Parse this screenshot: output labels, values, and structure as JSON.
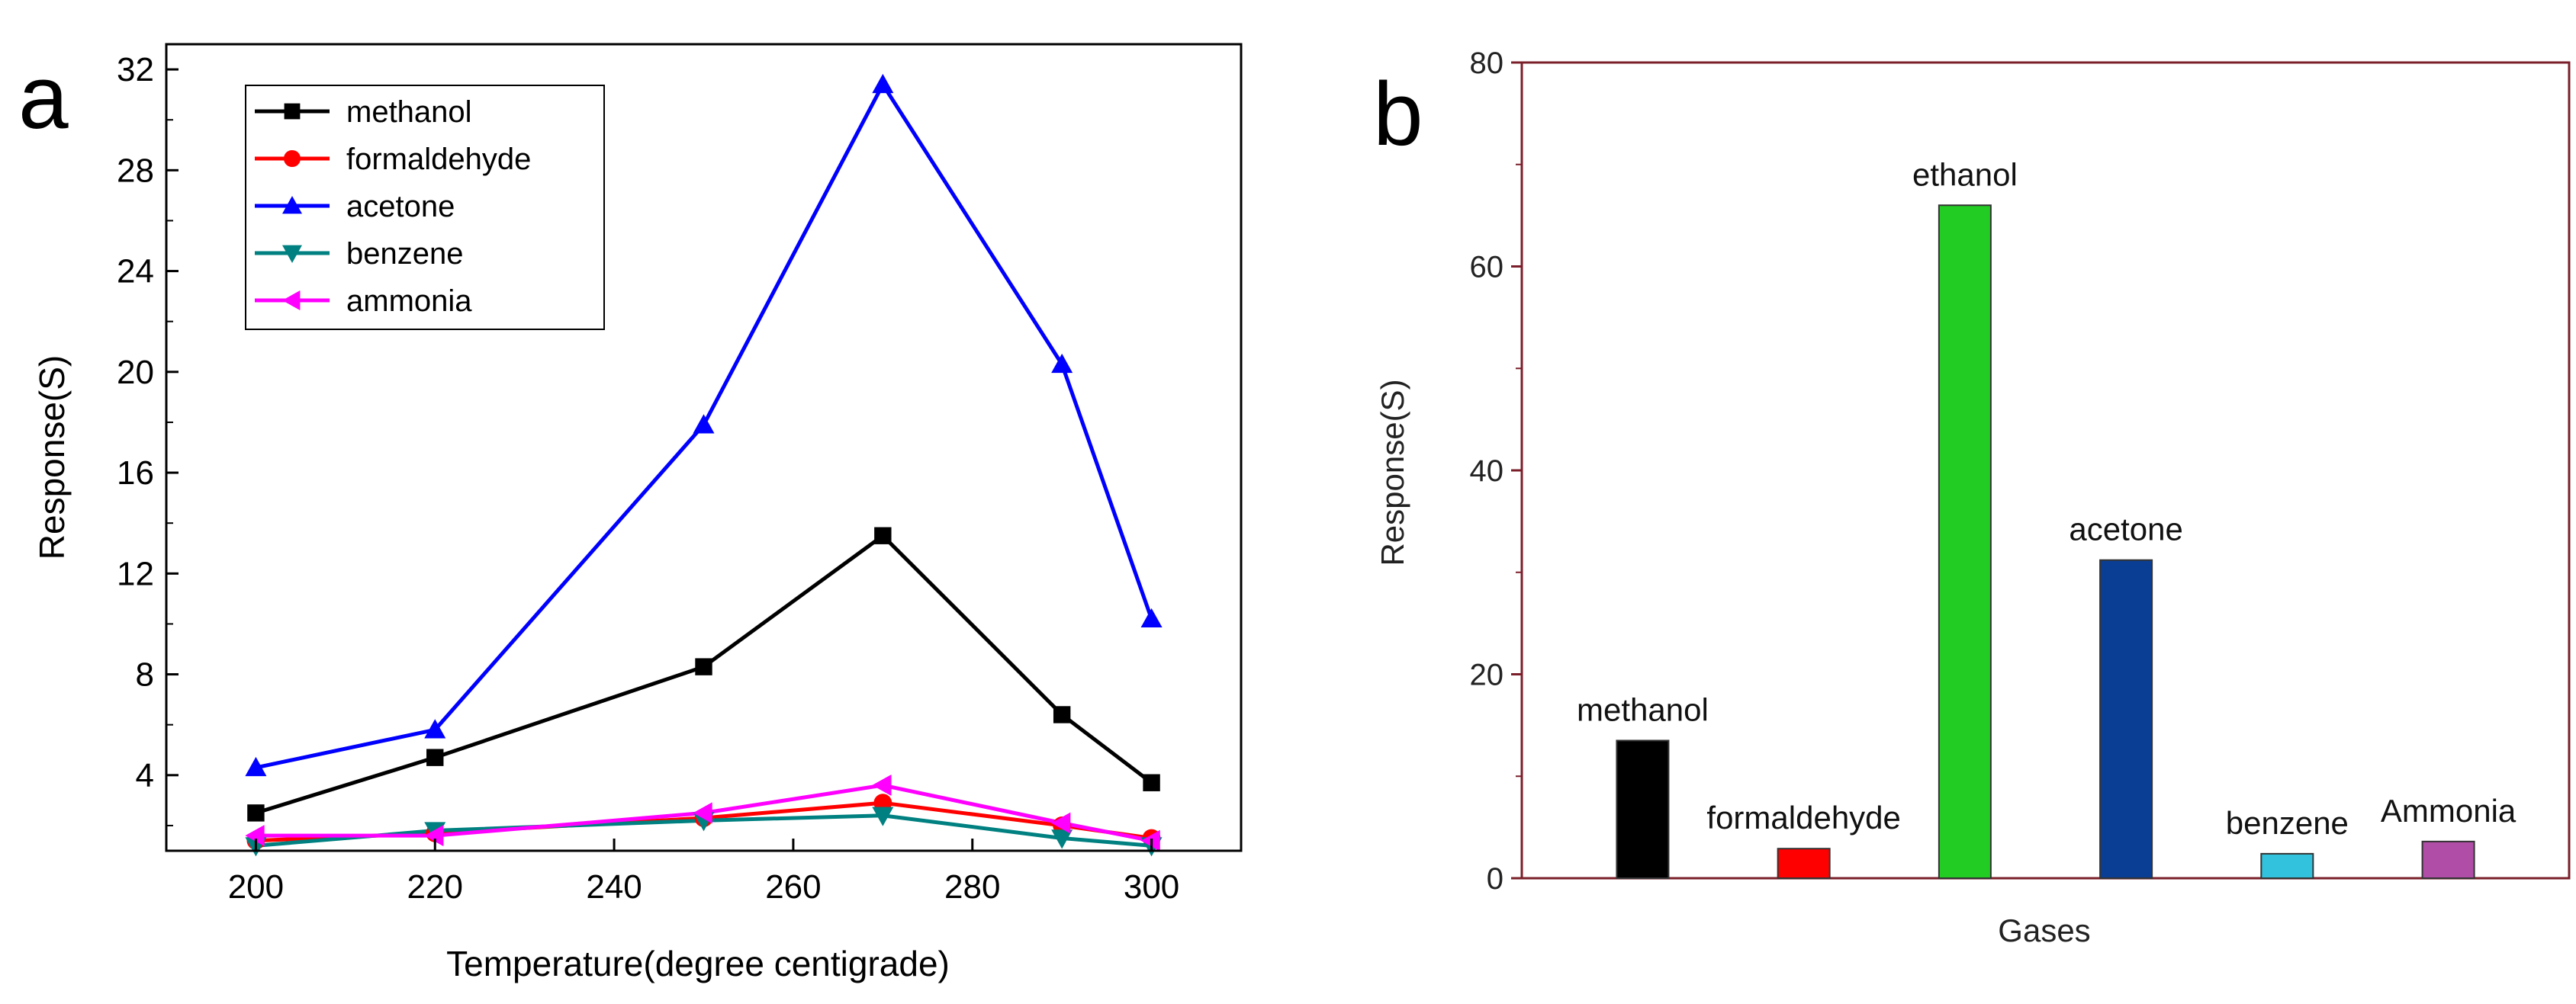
{
  "chart_data": [
    {
      "panel": "a",
      "type": "line",
      "title": "",
      "xlabel": "Temperature(degree centigrade)",
      "ylabel": "Response(S)",
      "xlim": [
        190,
        310
      ],
      "ylim": [
        1,
        33
      ],
      "xticks": [
        200,
        220,
        240,
        260,
        280,
        300
      ],
      "yticks": [
        4,
        8,
        12,
        16,
        20,
        24,
        28,
        32
      ],
      "legend_position": "top-left",
      "x": [
        200,
        220,
        250,
        270,
        290,
        300
      ],
      "series": [
        {
          "name": "methanol",
          "color": "#000000",
          "marker": "square",
          "values": [
            2.5,
            4.7,
            8.3,
            13.5,
            6.4,
            3.7
          ]
        },
        {
          "name": "formaldehyde",
          "color": "#ff0000",
          "marker": "circle",
          "values": [
            1.4,
            1.7,
            2.3,
            2.9,
            2.0,
            1.5
          ]
        },
        {
          "name": "acetone",
          "color": "#0000ff",
          "marker": "triangle-up",
          "values": [
            4.3,
            5.8,
            17.9,
            31.4,
            20.3,
            10.2
          ]
        },
        {
          "name": "benzene",
          "color": "#008080",
          "marker": "triangle-down",
          "values": [
            1.2,
            1.8,
            2.2,
            2.4,
            1.5,
            1.2
          ]
        },
        {
          "name": "ammonia",
          "color": "#ff00ff",
          "marker": "triangle-left",
          "values": [
            1.6,
            1.6,
            2.5,
            3.6,
            2.1,
            1.4
          ]
        }
      ]
    },
    {
      "panel": "b",
      "type": "bar",
      "title": "",
      "xlabel": "Gases",
      "ylabel": "Response(S)",
      "ylim": [
        0,
        80
      ],
      "yticks": [
        0,
        20,
        40,
        60,
        80
      ],
      "categories": [
        "methanol",
        "formaldehyde",
        "ethanol",
        "acetone",
        "benzene",
        "Ammonia"
      ],
      "values": [
        13.5,
        2.9,
        66,
        31.2,
        2.4,
        3.6
      ],
      "colors": [
        "#000000",
        "#ff0000",
        "#22cc22",
        "#0a3e94",
        "#33c2dd",
        "#b04da6"
      ]
    }
  ]
}
